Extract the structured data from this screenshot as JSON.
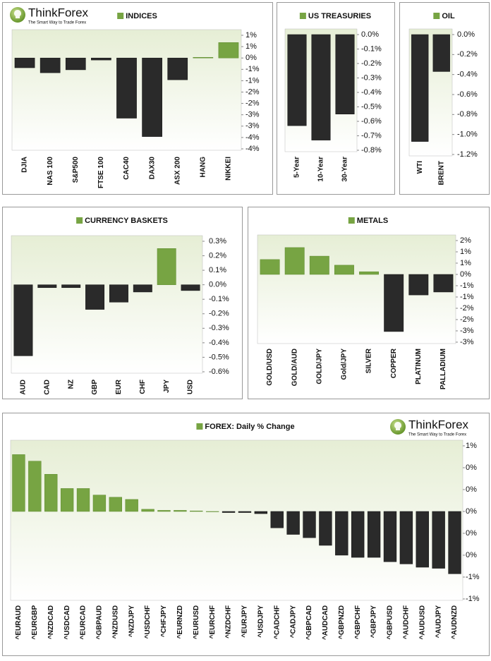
{
  "logo": {
    "name": "ThinkForex",
    "tagline": "The Smart Way to Trade Forex"
  },
  "chart_data": [
    {
      "type": "bar",
      "title": "INDICES",
      "categories": [
        "DJIA",
        "NAS 100",
        "S&P500",
        "FTSE 100",
        "CAC40",
        "DAX30",
        "ASX 200",
        "HANG",
        "NIKKEI"
      ],
      "values": [
        -0.43,
        -0.65,
        -0.52,
        -0.09,
        -2.65,
        -3.46,
        -0.96,
        0.03,
        0.68
      ],
      "color": "#77a443",
      "negative_color": "#2a2a2a",
      "ylim": [
        -4,
        1
      ],
      "yticks": [
        {
          "value": 1,
          "label": "1%"
        },
        {
          "value": 0.5,
          "label": "1%"
        },
        {
          "value": 0,
          "label": "0%"
        },
        {
          "value": -0.5,
          "label": "-1%"
        },
        {
          "value": -1,
          "label": "-1%"
        },
        {
          "value": -1.5,
          "label": "-2%"
        },
        {
          "value": -2,
          "label": "-2%"
        },
        {
          "value": -2.5,
          "label": "-3%"
        },
        {
          "value": -3,
          "label": "-3%"
        },
        {
          "value": -3.5,
          "label": "-4%"
        },
        {
          "value": -4,
          "label": "-4%"
        }
      ]
    },
    {
      "type": "bar",
      "title": "US TREASURIES",
      "categories": [
        "5-Year",
        "10-Year",
        "30-Year"
      ],
      "values": [
        -0.63,
        -0.73,
        -0.55
      ],
      "color": "#77a443",
      "negative_color": "#2a2a2a",
      "ylim": [
        -0.8,
        0
      ],
      "yticks": [
        {
          "value": 0,
          "label": "0.0%"
        },
        {
          "value": -0.1,
          "label": "-0.1%"
        },
        {
          "value": -0.2,
          "label": "-0.2%"
        },
        {
          "value": -0.3,
          "label": "-0.3%"
        },
        {
          "value": -0.4,
          "label": "-0.4%"
        },
        {
          "value": -0.5,
          "label": "-0.5%"
        },
        {
          "value": -0.6,
          "label": "-0.6%"
        },
        {
          "value": -0.7,
          "label": "-0.7%"
        },
        {
          "value": -0.8,
          "label": "-0.8%"
        }
      ]
    },
    {
      "type": "bar",
      "title": "OIL",
      "categories": [
        "WTI",
        "BRENT"
      ],
      "values": [
        -1.07,
        -0.37
      ],
      "color": "#77a443",
      "negative_color": "#2a2a2a",
      "ylim": [
        -1.2,
        0
      ],
      "yticks": [
        {
          "value": 0,
          "label": "0.0%"
        },
        {
          "value": -0.2,
          "label": "-0.2%"
        },
        {
          "value": -0.4,
          "label": "-0.4%"
        },
        {
          "value": -0.6,
          "label": "-0.6%"
        },
        {
          "value": -0.8,
          "label": "-0.8%"
        },
        {
          "value": -1.0,
          "label": "-1.0%"
        },
        {
          "value": -1.2,
          "label": "-1.2%"
        }
      ]
    },
    {
      "type": "bar",
      "title": "CURRENCY BASKETS",
      "categories": [
        "AUD",
        "CAD",
        "NZ",
        "GBP",
        "EUR",
        "CHF",
        "JPY",
        "USD"
      ],
      "values": [
        -0.49,
        -0.02,
        -0.02,
        -0.17,
        -0.12,
        -0.05,
        0.25,
        -0.04
      ],
      "color": "#77a443",
      "negative_color": "#2a2a2a",
      "ylim": [
        -0.6,
        0.3
      ],
      "yticks": [
        {
          "value": 0.3,
          "label": "0.3%"
        },
        {
          "value": 0.2,
          "label": "0.2%"
        },
        {
          "value": 0.1,
          "label": "0.1%"
        },
        {
          "value": 0,
          "label": "0.0%"
        },
        {
          "value": -0.1,
          "label": "-0.1%"
        },
        {
          "value": -0.2,
          "label": "-0.2%"
        },
        {
          "value": -0.3,
          "label": "-0.3%"
        },
        {
          "value": -0.4,
          "label": "-0.4%"
        },
        {
          "value": -0.5,
          "label": "-0.5%"
        },
        {
          "value": -0.6,
          "label": "-0.6%"
        }
      ]
    },
    {
      "type": "bar",
      "title": "METALS",
      "categories": [
        "GOLD/USD",
        "GOLD/AUD",
        "GOLD/JPY",
        "Gold/JPY",
        "SILVER",
        "COPPER",
        "PLATINUM",
        "PALLADIUM"
      ],
      "values": [
        0.66,
        1.19,
        0.81,
        0.41,
        0.12,
        -2.53,
        -0.91,
        -0.78
      ],
      "color": "#77a443",
      "negative_color": "#2a2a2a",
      "ylim": [
        -3,
        1.5
      ],
      "yticks": [
        {
          "value": 1.5,
          "label": "2%"
        },
        {
          "value": 1,
          "label": "1%"
        },
        {
          "value": 0.5,
          "label": "1%"
        },
        {
          "value": 0,
          "label": "0%"
        },
        {
          "value": -0.5,
          "label": "-1%"
        },
        {
          "value": -1,
          "label": "-1%"
        },
        {
          "value": -1.5,
          "label": "-2%"
        },
        {
          "value": -2,
          "label": "-2%"
        },
        {
          "value": -2.5,
          "label": "-3%"
        },
        {
          "value": -3,
          "label": "-3%"
        }
      ]
    },
    {
      "type": "bar",
      "title": "FOREX: Daily % Change",
      "categories": [
        "^EURAUD",
        "^EURGBP",
        "^NZDCAD",
        "^USDCAD",
        "^EURCAD",
        "^GBPAUD",
        "^NZDUSD",
        "^NZDJPY",
        "^USDCHF",
        "^CHFJPY",
        "^EURNZD",
        "^EURUSD",
        "^EURCHF",
        "^NZDCHF",
        "^EURJPY",
        "^USDJPY",
        "^CADCHF",
        "^CADJPY",
        "^GBPCAD",
        "^AUDCAD",
        "^GBPNZD",
        "^GBPCHF",
        "^GBPJPY",
        "^GBPUSD",
        "^AUDCHF",
        "^AUDUSD",
        "^AUDJPY",
        "^AUDNZD"
      ],
      "values": [
        0.52,
        0.46,
        0.34,
        0.21,
        0.21,
        0.15,
        0.13,
        0.11,
        0.02,
        0.01,
        0.01,
        0.005,
        0,
        -0.01,
        -0.01,
        -0.02,
        -0.15,
        -0.21,
        -0.24,
        -0.31,
        -0.4,
        -0.42,
        -0.42,
        -0.46,
        -0.48,
        -0.51,
        -0.52,
        -0.57
      ],
      "color": "#77a443",
      "negative_color": "#2a2a2a",
      "ylim": [
        -0.8,
        0.6
      ],
      "yticks": [
        {
          "value": 0.6,
          "label": "1%"
        },
        {
          "value": 0.4,
          "label": "0%"
        },
        {
          "value": 0.2,
          "label": "0%"
        },
        {
          "value": 0,
          "label": "0%"
        },
        {
          "value": -0.2,
          "label": "0%"
        },
        {
          "value": -0.4,
          "label": "0%"
        },
        {
          "value": -0.6,
          "label": "-1%"
        },
        {
          "value": -0.8,
          "label": "-1%"
        }
      ]
    }
  ]
}
